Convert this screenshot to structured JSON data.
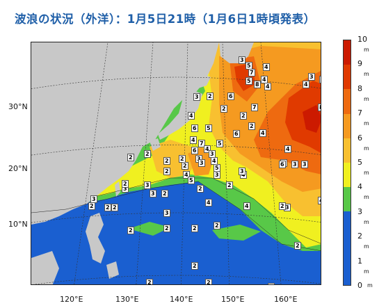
{
  "title": "波浪の状況（外洋）：1月5日21時（1月6日1時頃発表）",
  "lat_labels": [
    "30°N",
    "20°N",
    "10°N"
  ],
  "lon_labels": [
    "120°E",
    "130°E",
    "140°E",
    "150°E",
    "160°E"
  ],
  "colorbar": {
    "levels": [
      "10",
      "9",
      "8",
      "7",
      "6",
      "5",
      "4",
      "3",
      "2",
      "1",
      "0"
    ],
    "unit": "m",
    "colors": [
      "#cc1a00",
      "#e03a00",
      "#ee6a10",
      "#f59a20",
      "#f8c030",
      "#f0f020",
      "#58c848",
      "#1a5fd0"
    ]
  },
  "map_labels": {
    "wave_heights": [
      "3",
      "5",
      "7",
      "4",
      "4",
      "4",
      "5",
      "8",
      "6",
      "2",
      "3",
      "2",
      "4",
      "5",
      "6",
      "4",
      "7",
      "6",
      "4",
      "2",
      "3",
      "3",
      "5",
      "4",
      "5",
      "3",
      "2",
      "4",
      "3",
      "6",
      "7",
      "8",
      "3",
      "2",
      "2",
      "4",
      "4",
      "3",
      "3",
      "2",
      "4",
      "4",
      "4",
      "3",
      "6",
      "2",
      "4",
      "2",
      "5",
      "2",
      "3",
      "4",
      "4",
      "3",
      "2",
      "3",
      "3",
      "2",
      "2",
      "3",
      "2",
      "2",
      "2",
      "3",
      "2",
      "2",
      "2",
      "2",
      "2",
      "2",
      "2",
      "2",
      "2",
      "3",
      "2",
      "2"
    ]
  }
}
